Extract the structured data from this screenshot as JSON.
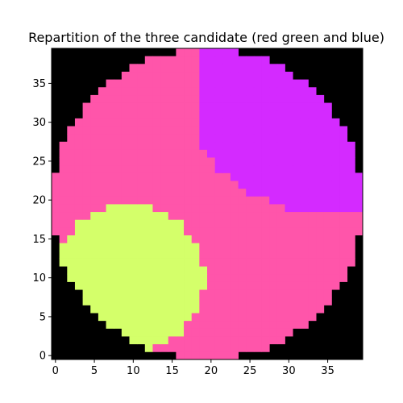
{
  "chart_data": {
    "type": "heatmap",
    "title": "Repartition of the three candidate (red green and blue)",
    "xlabel": "",
    "ylabel": "",
    "x_ticks": [
      0,
      5,
      10,
      15,
      20,
      25,
      30,
      35
    ],
    "y_ticks": [
      0,
      5,
      10,
      15,
      20,
      25,
      30,
      35
    ],
    "x_tick_labels": [
      "0",
      "5",
      "10",
      "15",
      "20",
      "25",
      "30",
      "35"
    ],
    "y_tick_labels": [
      "0",
      "5",
      "10",
      "15",
      "20",
      "25",
      "30",
      "35"
    ],
    "xlim": [
      -0.5,
      39.5
    ],
    "ylim": [
      -0.5,
      39.5
    ],
    "grid": false,
    "legend": false,
    "colors": {
      "background": "#000000",
      "red_candidate": "#ff55aa",
      "green_candidate": "#d4ff6a",
      "blue_candidate": "#d42aff"
    },
    "disk": {
      "center": [
        19.5,
        19.5
      ],
      "radius": 20
    },
    "regions": [
      {
        "candidate": "green",
        "shape": "circle",
        "center": [
          9.5,
          10
        ],
        "radius": 9.6
      },
      {
        "candidate": "blue",
        "shape": "half-plane",
        "bounds": {
          "x_min": 18,
          "y_min": 19.5,
          "x_max": 39.5,
          "y_max": 39.5
        },
        "boundary": [
          [
            18.5,
            39.5
          ],
          [
            18.5,
            27
          ],
          [
            21,
            24
          ],
          [
            25,
            21
          ],
          [
            30,
            19
          ],
          [
            39.5,
            19
          ]
        ]
      }
    ]
  }
}
